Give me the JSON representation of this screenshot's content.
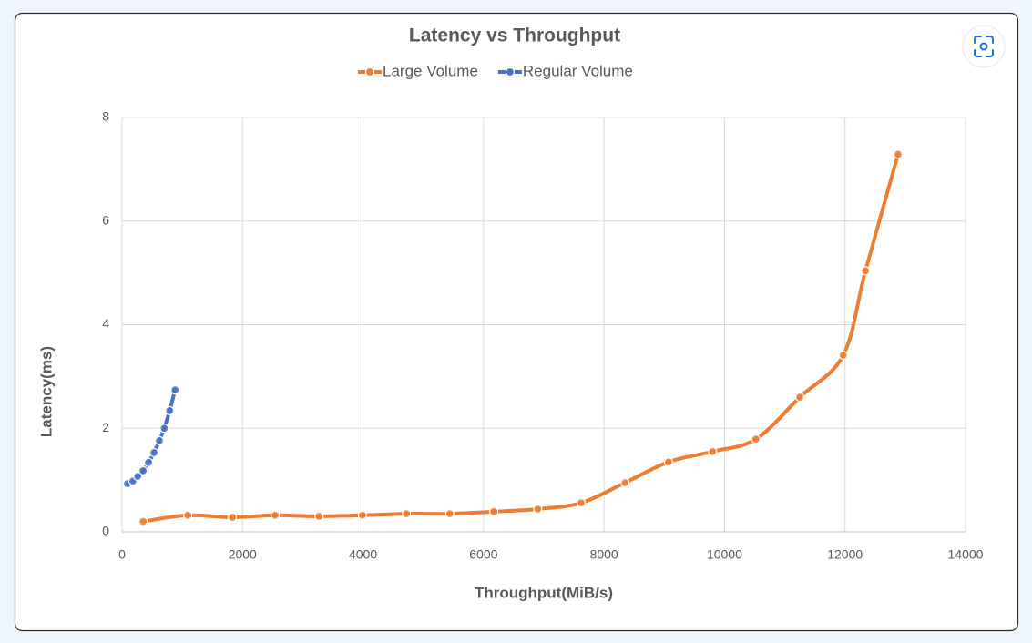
{
  "chart_data": {
    "type": "line",
    "title": "Latency vs Throughput",
    "x_label": "Throughput(MiB/s)",
    "y_label": "Latency(ms)",
    "xlim": [
      0,
      14000
    ],
    "xticks": [
      0,
      2000,
      4000,
      6000,
      8000,
      10000,
      12000,
      14000
    ],
    "ylim": [
      0,
      8
    ],
    "yticks": [
      0,
      2,
      4,
      6,
      8
    ],
    "grid": true,
    "legend": "top",
    "series": [
      {
        "name": "Large Volume",
        "color": "#ed7d31",
        "x": [
          350,
          1090,
          1830,
          2540,
          3270,
          3990,
          4720,
          5440,
          6170,
          6900,
          7620,
          8350,
          9070,
          9800,
          10520,
          11250,
          11970,
          12340,
          12880
        ],
        "values": [
          0.2,
          0.32,
          0.28,
          0.32,
          0.3,
          0.32,
          0.35,
          0.35,
          0.39,
          0.44,
          0.56,
          0.95,
          1.35,
          1.55,
          1.79,
          2.6,
          3.41,
          5.04,
          7.29
        ]
      },
      {
        "name": "Regular Volume",
        "color": "#4472c4",
        "x": [
          90,
          180,
          260,
          350,
          440,
          530,
          620,
          700,
          790,
          880
        ],
        "values": [
          0.93,
          0.98,
          1.07,
          1.18,
          1.34,
          1.53,
          1.76,
          2.0,
          2.34,
          2.74
        ]
      }
    ]
  }
}
